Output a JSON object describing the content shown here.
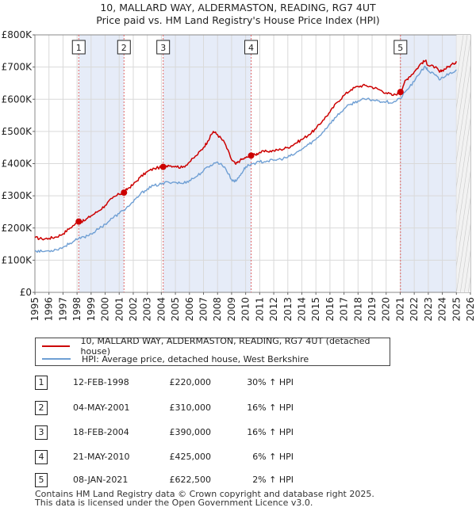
{
  "title_line1": "10, MALLARD WAY, ALDERMASTON, READING, RG7 4UT",
  "title_line2": "Price paid vs. HM Land Registry's House Price Index (HPI)",
  "chart_data": {
    "type": "line",
    "title": "10, MALLARD WAY, ALDERMASTON, READING, RG7 4UT — Price paid vs. HM Land Registry's House Price Index (HPI)",
    "xlim": [
      1995,
      2026
    ],
    "ylim": [
      0,
      800000
    ],
    "x_ticks": [
      "1995",
      "1996",
      "1997",
      "1998",
      "1999",
      "2000",
      "2001",
      "2002",
      "2003",
      "2004",
      "2005",
      "2006",
      "2007",
      "2008",
      "2009",
      "2010",
      "2011",
      "2012",
      "2013",
      "2014",
      "2015",
      "2016",
      "2017",
      "2018",
      "2019",
      "2020",
      "2021",
      "2022",
      "2023",
      "2024",
      "2025",
      "2026"
    ],
    "y_ticks": [
      {
        "value": 0,
        "label": "£0"
      },
      {
        "value": 100000,
        "label": "£100K"
      },
      {
        "value": 200000,
        "label": "£200K"
      },
      {
        "value": 300000,
        "label": "£300K"
      },
      {
        "value": 400000,
        "label": "£400K"
      },
      {
        "value": 500000,
        "label": "£500K"
      },
      {
        "value": 600000,
        "label": "£600K"
      },
      {
        "value": 700000,
        "label": "£700K"
      },
      {
        "value": 800000,
        "label": "£800K"
      }
    ],
    "forecast_from": 2025.0,
    "sale_markers": [
      {
        "label": "1",
        "x": 1998.12,
        "y": 220000
      },
      {
        "label": "2",
        "x": 2001.34,
        "y": 310000
      },
      {
        "label": "3",
        "x": 2004.13,
        "y": 390000
      },
      {
        "label": "4",
        "x": 2010.39,
        "y": 425000
      },
      {
        "label": "5",
        "x": 2021.02,
        "y": 622500
      }
    ],
    "shaded_spans": [
      [
        1998.12,
        2001.34
      ],
      [
        2004.13,
        2010.39
      ],
      [
        2021.02,
        2025.0
      ]
    ],
    "series": [
      {
        "name": "10, MALLARD WAY, ALDERMASTON, READING, RG7 4UT (detached house)",
        "color": "#cc0000",
        "points": [
          [
            1995.0,
            170000
          ],
          [
            1995.5,
            166000
          ],
          [
            1996.0,
            168000
          ],
          [
            1996.5,
            172000
          ],
          [
            1997.0,
            182000
          ],
          [
            1997.5,
            200000
          ],
          [
            1998.12,
            220000
          ],
          [
            1998.5,
            222000
          ],
          [
            1999.0,
            238000
          ],
          [
            1999.5,
            252000
          ],
          [
            2000.0,
            270000
          ],
          [
            2000.5,
            292000
          ],
          [
            2001.0,
            305000
          ],
          [
            2001.34,
            310000
          ],
          [
            2001.6,
            322000
          ],
          [
            2002.0,
            335000
          ],
          [
            2002.5,
            358000
          ],
          [
            2003.0,
            375000
          ],
          [
            2003.5,
            385000
          ],
          [
            2004.13,
            390000
          ],
          [
            2004.5,
            395000
          ],
          [
            2005.0,
            392000
          ],
          [
            2005.5,
            388000
          ],
          [
            2006.0,
            405000
          ],
          [
            2006.5,
            425000
          ],
          [
            2007.0,
            450000
          ],
          [
            2007.3,
            470000
          ],
          [
            2007.7,
            500000
          ],
          [
            2008.0,
            490000
          ],
          [
            2008.5,
            465000
          ],
          [
            2009.0,
            412000
          ],
          [
            2009.3,
            398000
          ],
          [
            2009.6,
            410000
          ],
          [
            2010.0,
            418000
          ],
          [
            2010.39,
            425000
          ],
          [
            2010.7,
            428000
          ],
          [
            2011.0,
            435000
          ],
          [
            2011.5,
            438000
          ],
          [
            2012.0,
            440000
          ],
          [
            2012.5,
            444000
          ],
          [
            2013.0,
            450000
          ],
          [
            2013.5,
            462000
          ],
          [
            2014.0,
            475000
          ],
          [
            2014.5,
            490000
          ],
          [
            2015.0,
            508000
          ],
          [
            2015.5,
            535000
          ],
          [
            2016.0,
            560000
          ],
          [
            2016.5,
            590000
          ],
          [
            2017.0,
            612000
          ],
          [
            2017.5,
            630000
          ],
          [
            2018.0,
            640000
          ],
          [
            2018.5,
            643000
          ],
          [
            2019.0,
            638000
          ],
          [
            2019.5,
            630000
          ],
          [
            2020.0,
            620000
          ],
          [
            2020.5,
            612000
          ],
          [
            2021.02,
            622500
          ],
          [
            2021.3,
            652000
          ],
          [
            2021.6,
            668000
          ],
          [
            2022.0,
            685000
          ],
          [
            2022.5,
            712000
          ],
          [
            2022.8,
            720000
          ],
          [
            2023.0,
            705000
          ],
          [
            2023.5,
            700000
          ],
          [
            2023.8,
            684000
          ],
          [
            2024.0,
            690000
          ],
          [
            2024.4,
            700000
          ],
          [
            2024.8,
            710000
          ],
          [
            2025.0,
            718000
          ]
        ]
      },
      {
        "name": "HPI: Average price, detached house, West Berkshire",
        "color": "#6f9fd4",
        "points": [
          [
            1995.0,
            130000
          ],
          [
            1995.5,
            127000
          ],
          [
            1996.0,
            129000
          ],
          [
            1996.5,
            133000
          ],
          [
            1997.0,
            140000
          ],
          [
            1997.5,
            153000
          ],
          [
            1998.0,
            164000
          ],
          [
            1998.5,
            172000
          ],
          [
            1999.0,
            182000
          ],
          [
            1999.5,
            196000
          ],
          [
            2000.0,
            212000
          ],
          [
            2000.5,
            230000
          ],
          [
            2001.0,
            245000
          ],
          [
            2001.5,
            262000
          ],
          [
            2002.0,
            280000
          ],
          [
            2002.5,
            305000
          ],
          [
            2003.0,
            322000
          ],
          [
            2003.5,
            332000
          ],
          [
            2004.0,
            336000
          ],
          [
            2004.5,
            343000
          ],
          [
            2005.0,
            342000
          ],
          [
            2005.5,
            338000
          ],
          [
            2006.0,
            348000
          ],
          [
            2006.5,
            360000
          ],
          [
            2007.0,
            378000
          ],
          [
            2007.5,
            395000
          ],
          [
            2008.0,
            405000
          ],
          [
            2008.5,
            390000
          ],
          [
            2009.0,
            350000
          ],
          [
            2009.3,
            345000
          ],
          [
            2009.7,
            370000
          ],
          [
            2010.0,
            390000
          ],
          [
            2010.5,
            400000
          ],
          [
            2011.0,
            405000
          ],
          [
            2011.5,
            408000
          ],
          [
            2012.0,
            410000
          ],
          [
            2012.5,
            414000
          ],
          [
            2013.0,
            420000
          ],
          [
            2013.5,
            430000
          ],
          [
            2014.0,
            445000
          ],
          [
            2014.5,
            460000
          ],
          [
            2015.0,
            475000
          ],
          [
            2015.5,
            498000
          ],
          [
            2016.0,
            525000
          ],
          [
            2016.5,
            548000
          ],
          [
            2017.0,
            570000
          ],
          [
            2017.5,
            585000
          ],
          [
            2018.0,
            595000
          ],
          [
            2018.5,
            600000
          ],
          [
            2019.0,
            598000
          ],
          [
            2019.5,
            595000
          ],
          [
            2020.0,
            592000
          ],
          [
            2020.5,
            590000
          ],
          [
            2021.0,
            602000
          ],
          [
            2021.5,
            630000
          ],
          [
            2022.0,
            655000
          ],
          [
            2022.5,
            690000
          ],
          [
            2022.8,
            700000
          ],
          [
            2023.0,
            688000
          ],
          [
            2023.5,
            675000
          ],
          [
            2023.8,
            660000
          ],
          [
            2024.0,
            668000
          ],
          [
            2024.5,
            680000
          ],
          [
            2025.0,
            692000
          ]
        ]
      }
    ]
  },
  "legend": {
    "property_label": "10, MALLARD WAY, ALDERMASTON, READING, RG7 4UT (detached house)",
    "hpi_label": "HPI: Average price, detached house, West Berkshire"
  },
  "sales": [
    {
      "num": "1",
      "date": "12-FEB-1998",
      "price": "£220,000",
      "hpi": "30% ↑ HPI"
    },
    {
      "num": "2",
      "date": "04-MAY-2001",
      "price": "£310,000",
      "hpi": "16% ↑ HPI"
    },
    {
      "num": "3",
      "date": "18-FEB-2004",
      "price": "£390,000",
      "hpi": "16% ↑ HPI"
    },
    {
      "num": "4",
      "date": "21-MAY-2010",
      "price": "£425,000",
      "hpi": "6% ↑ HPI"
    },
    {
      "num": "5",
      "date": "08-JAN-2021",
      "price": "£622,500",
      "hpi": "2% ↑ HPI"
    }
  ],
  "footer_line1": "Contains HM Land Registry data © Crown copyright and database right 2025.",
  "footer_line2": "This data is licensed under the Open Government Licence v3.0.",
  "colors": {
    "property": "#cc0000",
    "hpi": "#6f9fd4",
    "shade": "#e6ecf8",
    "grid": "#d9d9d9"
  }
}
